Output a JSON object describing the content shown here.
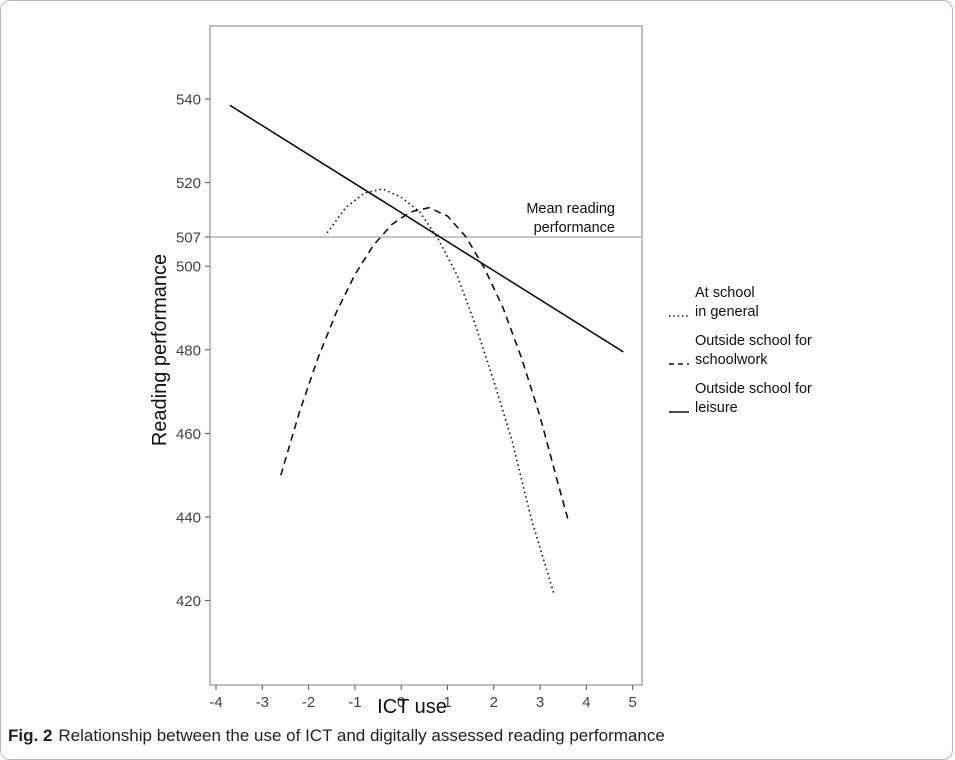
{
  "caption": {
    "label": "Fig. 2",
    "text": "Relationship between the use of ICT and digitally assessed reading performance"
  },
  "chart_data": {
    "type": "line",
    "xlabel": "ICT use",
    "ylabel": "Reading performance",
    "xlim": [
      -4,
      5
    ],
    "ylim": [
      410,
      555
    ],
    "xticks": [
      -4,
      -3,
      -2,
      -1,
      0,
      1,
      2,
      3,
      4,
      5
    ],
    "yticks": [
      420,
      440,
      460,
      480,
      500,
      507,
      520,
      540
    ],
    "grid": false,
    "legend_position": "right",
    "reference_line": {
      "y": 507,
      "label_lines": [
        "Mean reading",
        "performance"
      ]
    },
    "series": [
      {
        "name_lines": [
          "At school",
          "in general"
        ],
        "style": "dotted",
        "x": [
          -1.6,
          -1.2,
          -0.8,
          -0.4,
          0.0,
          0.4,
          0.8,
          1.2,
          1.6,
          2.0,
          2.4,
          2.8,
          3.3
        ],
        "y": [
          508,
          514,
          517.5,
          518.5,
          516.5,
          513,
          506.5,
          498,
          486,
          472.5,
          458,
          440,
          421.5
        ]
      },
      {
        "name_lines": [
          "Outside school for",
          "schoolwork"
        ],
        "style": "dashed",
        "x": [
          -2.6,
          -2.2,
          -1.8,
          -1.4,
          -1.0,
          -0.6,
          -0.2,
          0.2,
          0.6,
          1.0,
          1.4,
          1.8,
          2.2,
          2.6,
          3.0,
          3.4,
          3.6
        ],
        "y": [
          450,
          465,
          478,
          489,
          498,
          505,
          510,
          513,
          514,
          512,
          507,
          499.5,
          490,
          478,
          464,
          447.5,
          439.5
        ]
      },
      {
        "name_lines": [
          "Outside school for",
          "leisure"
        ],
        "style": "solid",
        "x": [
          -3.7,
          4.8
        ],
        "y": [
          538.5,
          479.5
        ]
      }
    ]
  }
}
